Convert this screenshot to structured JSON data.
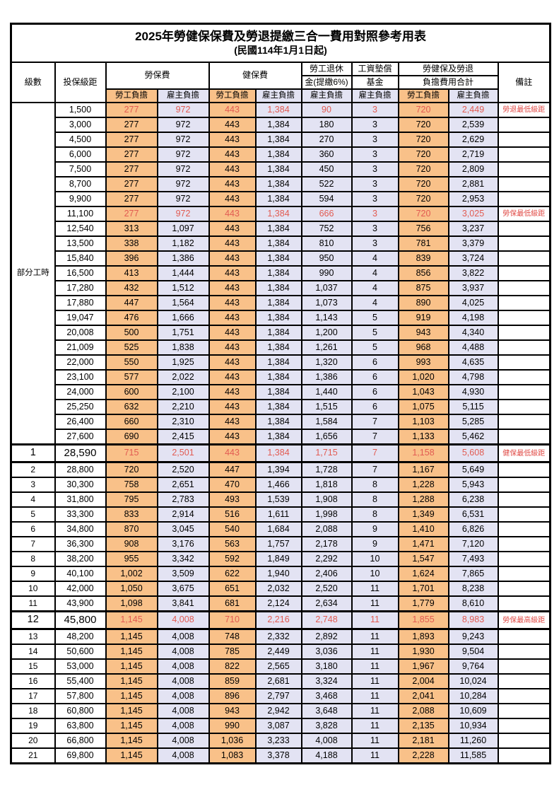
{
  "title": {
    "main": "2025年勞健保保費及勞退提繳三合一費用對照參考用表",
    "sub": "(民國114年1月1日起)"
  },
  "header": {
    "level_label": "級數",
    "salary_label": "投保級距",
    "labor_label": "勞保費",
    "health_label": "健保費",
    "pension_line1": "勞工退休",
    "pension_line2": "金(提繳6%)",
    "wage_line1": "工資墊償",
    "wage_line2": "基金",
    "total_line1": "勞健保及勞退",
    "total_line2": "負擔費用合計",
    "remark_label": "備註",
    "employee_label": "勞工負擔",
    "employer_label": "雇主負擔"
  },
  "part_time_label": "部分工時",
  "colors": {
    "employee_bg": "#f9c189",
    "employer_bg": "#e3e3f3",
    "highlight_text": "#e25b52",
    "remark_text": "#e04a45",
    "border": "#000000"
  },
  "row_fields": [
    "level",
    "salary",
    "labor_employee",
    "labor_employer",
    "health_employee",
    "health_employer",
    "pension_employer",
    "wage_fund_employer",
    "total_employee",
    "total_employer",
    "remark",
    "flags"
  ],
  "rows": [
    [
      "",
      "1,500",
      "277",
      "972",
      "443",
      "1,384",
      "90",
      "3",
      "720",
      "2,449",
      "勞退最低級距",
      "red"
    ],
    [
      "",
      "3,000",
      "277",
      "972",
      "443",
      "1,384",
      "180",
      "3",
      "720",
      "2,539",
      "",
      ""
    ],
    [
      "",
      "4,500",
      "277",
      "972",
      "443",
      "1,384",
      "270",
      "3",
      "720",
      "2,629",
      "",
      ""
    ],
    [
      "",
      "6,000",
      "277",
      "972",
      "443",
      "1,384",
      "360",
      "3",
      "720",
      "2,719",
      "",
      ""
    ],
    [
      "",
      "7,500",
      "277",
      "972",
      "443",
      "1,384",
      "450",
      "3",
      "720",
      "2,809",
      "",
      ""
    ],
    [
      "",
      "8,700",
      "277",
      "972",
      "443",
      "1,384",
      "522",
      "3",
      "720",
      "2,881",
      "",
      ""
    ],
    [
      "",
      "9,900",
      "277",
      "972",
      "443",
      "1,384",
      "594",
      "3",
      "720",
      "2,953",
      "",
      ""
    ],
    [
      "",
      "11,100",
      "277",
      "972",
      "443",
      "1,384",
      "666",
      "3",
      "720",
      "3,025",
      "勞保最低級距",
      "red"
    ],
    [
      "",
      "12,540",
      "313",
      "1,097",
      "443",
      "1,384",
      "752",
      "3",
      "756",
      "3,237",
      "",
      ""
    ],
    [
      "",
      "13,500",
      "338",
      "1,182",
      "443",
      "1,384",
      "810",
      "3",
      "781",
      "3,379",
      "",
      ""
    ],
    [
      "",
      "15,840",
      "396",
      "1,386",
      "443",
      "1,384",
      "950",
      "4",
      "839",
      "3,724",
      "",
      ""
    ],
    [
      "",
      "16,500",
      "413",
      "1,444",
      "443",
      "1,384",
      "990",
      "4",
      "856",
      "3,822",
      "",
      ""
    ],
    [
      "",
      "17,280",
      "432",
      "1,512",
      "443",
      "1,384",
      "1,037",
      "4",
      "875",
      "3,937",
      "",
      ""
    ],
    [
      "",
      "17,880",
      "447",
      "1,564",
      "443",
      "1,384",
      "1,073",
      "4",
      "890",
      "4,025",
      "",
      ""
    ],
    [
      "",
      "19,047",
      "476",
      "1,666",
      "443",
      "1,384",
      "1,143",
      "5",
      "919",
      "4,198",
      "",
      ""
    ],
    [
      "",
      "20,008",
      "500",
      "1,751",
      "443",
      "1,384",
      "1,200",
      "5",
      "943",
      "4,340",
      "",
      ""
    ],
    [
      "",
      "21,009",
      "525",
      "1,838",
      "443",
      "1,384",
      "1,261",
      "5",
      "968",
      "4,488",
      "",
      ""
    ],
    [
      "",
      "22,000",
      "550",
      "1,925",
      "443",
      "1,384",
      "1,320",
      "6",
      "993",
      "4,635",
      "",
      ""
    ],
    [
      "",
      "23,100",
      "577",
      "2,022",
      "443",
      "1,384",
      "1,386",
      "6",
      "1,020",
      "4,798",
      "",
      ""
    ],
    [
      "",
      "24,000",
      "600",
      "2,100",
      "443",
      "1,384",
      "1,440",
      "6",
      "1,043",
      "4,930",
      "",
      ""
    ],
    [
      "",
      "25,250",
      "632",
      "2,210",
      "443",
      "1,384",
      "1,515",
      "6",
      "1,075",
      "5,115",
      "",
      ""
    ],
    [
      "",
      "26,400",
      "660",
      "2,310",
      "443",
      "1,384",
      "1,584",
      "7",
      "1,103",
      "5,285",
      "",
      ""
    ],
    [
      "",
      "27,600",
      "690",
      "2,415",
      "443",
      "1,384",
      "1,656",
      "7",
      "1,133",
      "5,462",
      "",
      ""
    ],
    [
      "1",
      "28,590",
      "715",
      "2,501",
      "443",
      "1,384",
      "1,715",
      "7",
      "1,158",
      "5,608",
      "健保最低級距",
      "red em"
    ],
    [
      "2",
      "28,800",
      "720",
      "2,520",
      "447",
      "1,394",
      "1,728",
      "7",
      "1,167",
      "5,649",
      "",
      ""
    ],
    [
      "3",
      "30,300",
      "758",
      "2,651",
      "470",
      "1,466",
      "1,818",
      "8",
      "1,228",
      "5,943",
      "",
      ""
    ],
    [
      "4",
      "31,800",
      "795",
      "2,783",
      "493",
      "1,539",
      "1,908",
      "8",
      "1,288",
      "6,238",
      "",
      ""
    ],
    [
      "5",
      "33,300",
      "833",
      "2,914",
      "516",
      "1,611",
      "1,998",
      "8",
      "1,349",
      "6,531",
      "",
      ""
    ],
    [
      "6",
      "34,800",
      "870",
      "3,045",
      "540",
      "1,684",
      "2,088",
      "9",
      "1,410",
      "6,826",
      "",
      ""
    ],
    [
      "7",
      "36,300",
      "908",
      "3,176",
      "563",
      "1,757",
      "2,178",
      "9",
      "1,471",
      "7,120",
      "",
      ""
    ],
    [
      "8",
      "38,200",
      "955",
      "3,342",
      "592",
      "1,849",
      "2,292",
      "10",
      "1,547",
      "7,493",
      "",
      ""
    ],
    [
      "9",
      "40,100",
      "1,002",
      "3,509",
      "622",
      "1,940",
      "2,406",
      "10",
      "1,624",
      "7,865",
      "",
      ""
    ],
    [
      "10",
      "42,000",
      "1,050",
      "3,675",
      "651",
      "2,032",
      "2,520",
      "11",
      "1,701",
      "8,238",
      "",
      ""
    ],
    [
      "11",
      "43,900",
      "1,098",
      "3,841",
      "681",
      "2,124",
      "2,634",
      "11",
      "1,779",
      "8,610",
      "",
      ""
    ],
    [
      "12",
      "45,800",
      "1,145",
      "4,008",
      "710",
      "2,216",
      "2,748",
      "11",
      "1,855",
      "8,983",
      "勞保最高級距",
      "red em"
    ],
    [
      "13",
      "48,200",
      "1,145",
      "4,008",
      "748",
      "2,332",
      "2,892",
      "11",
      "1,893",
      "9,243",
      "",
      ""
    ],
    [
      "14",
      "50,600",
      "1,145",
      "4,008",
      "785",
      "2,449",
      "3,036",
      "11",
      "1,930",
      "9,504",
      "",
      ""
    ],
    [
      "15",
      "53,000",
      "1,145",
      "4,008",
      "822",
      "2,565",
      "3,180",
      "11",
      "1,967",
      "9,764",
      "",
      ""
    ],
    [
      "16",
      "55,400",
      "1,145",
      "4,008",
      "859",
      "2,681",
      "3,324",
      "11",
      "2,004",
      "10,024",
      "",
      ""
    ],
    [
      "17",
      "57,800",
      "1,145",
      "4,008",
      "896",
      "2,797",
      "3,468",
      "11",
      "2,041",
      "10,284",
      "",
      ""
    ],
    [
      "18",
      "60,800",
      "1,145",
      "4,008",
      "943",
      "2,942",
      "3,648",
      "11",
      "2,088",
      "10,609",
      "",
      ""
    ],
    [
      "19",
      "63,800",
      "1,145",
      "4,008",
      "990",
      "3,087",
      "3,828",
      "11",
      "2,135",
      "10,934",
      "",
      ""
    ],
    [
      "20",
      "66,800",
      "1,145",
      "4,008",
      "1,036",
      "3,233",
      "4,008",
      "11",
      "2,181",
      "11,260",
      "",
      ""
    ],
    [
      "21",
      "69,800",
      "1,145",
      "4,008",
      "1,083",
      "3,378",
      "4,188",
      "11",
      "2,228",
      "11,585",
      "",
      ""
    ]
  ],
  "part_time_row_span": 23
}
